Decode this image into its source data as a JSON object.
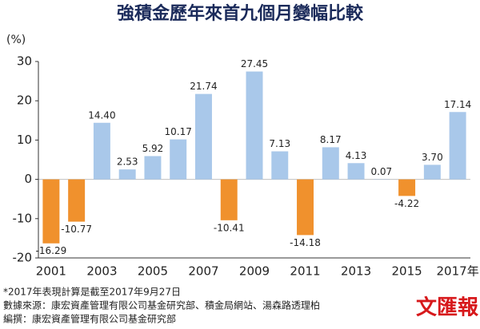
{
  "chart_data": {
    "type": "bar",
    "title": "強積金歷年來首九個月變幅比較",
    "y_label": "(%)",
    "categories": [
      "2001",
      null,
      "2003",
      null,
      "2005",
      null,
      "2007",
      null,
      "2009",
      null,
      "2011",
      null,
      "2013",
      null,
      "2015",
      null,
      "2017年"
    ],
    "values": [
      -16.29,
      -10.77,
      14.4,
      2.53,
      5.92,
      10.17,
      21.74,
      -10.41,
      27.45,
      7.13,
      -14.18,
      8.17,
      4.13,
      0.07,
      -4.22,
      3.7,
      17.14
    ],
    "value_labels": [
      "-16.29",
      "-10.77",
      "14.40",
      "2.53",
      "5.92",
      "10.17",
      "21.74",
      "-10.41",
      "27.45",
      "7.13",
      "-14.18",
      "8.17",
      "4.13",
      "0.07",
      "-4.22",
      "3.70",
      "17.14"
    ],
    "positive_color": "#a9c8ea",
    "negative_color": "#f0912d",
    "ylim": [
      -20,
      30
    ],
    "yticks": [
      -20,
      -10,
      0,
      10,
      20,
      30
    ],
    "notes": [
      "*2017年表現計算是截至2017年9月27日",
      "數據來源：康宏資產管理有限公司基金研究部、積金局網站、湯森路透理柏",
      "編撰：康宏資產管理有限公司基金研究部"
    ],
    "logo": "文匯報"
  }
}
